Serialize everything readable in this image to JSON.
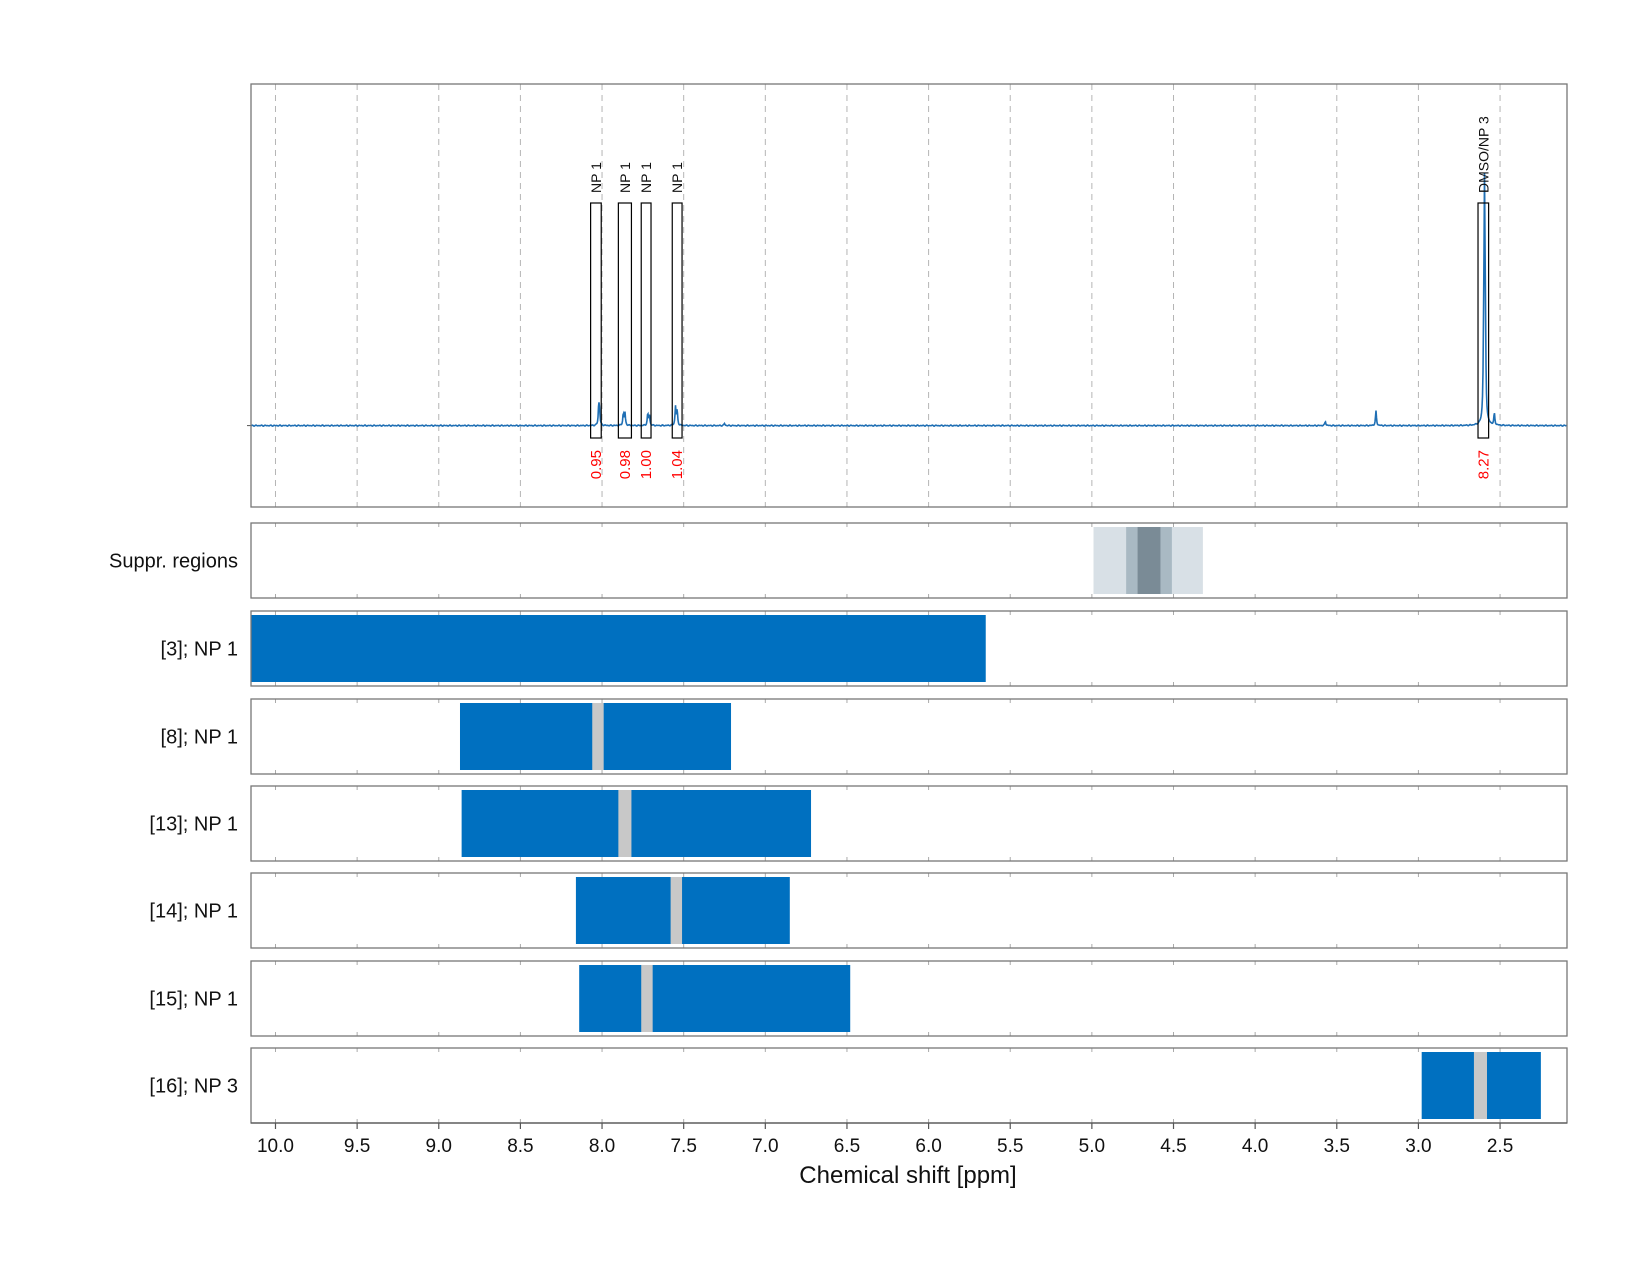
{
  "chart_data": {
    "type": "nmr-spectrum-with-region-bars",
    "xlabel": "Chemical shift [ppm]",
    "xlim": [
      10.15,
      2.09
    ],
    "x_reversed": true,
    "xticks": [
      "10.0",
      "9.5",
      "9.0",
      "8.5",
      "8.0",
      "7.5",
      "7.0",
      "6.5",
      "6.0",
      "5.5",
      "5.0",
      "4.5",
      "4.0",
      "3.5",
      "3.0",
      "2.5"
    ],
    "grid": true,
    "spectrum": {
      "color": "#1f6fb4",
      "baseline": 0,
      "ylim": [
        -0.56,
        2.35
      ],
      "peaks": [
        {
          "ppm": 8.02,
          "height": 0.14
        },
        {
          "ppm": 8.015,
          "height": 0.08
        },
        {
          "ppm": 7.87,
          "height": 0.08
        },
        {
          "ppm": 7.86,
          "height": 0.09
        },
        {
          "ppm": 7.72,
          "height": 0.08
        },
        {
          "ppm": 7.71,
          "height": 0.07
        },
        {
          "ppm": 7.55,
          "height": 0.13
        },
        {
          "ppm": 7.54,
          "height": 0.1
        },
        {
          "ppm": 7.25,
          "height": 0.015
        },
        {
          "ppm": 3.57,
          "height": 0.03
        },
        {
          "ppm": 3.26,
          "height": 0.1
        },
        {
          "ppm": 2.6,
          "height": 0.45
        },
        {
          "ppm": 2.595,
          "height": 1.45
        },
        {
          "ppm": 2.59,
          "height": 0.45
        },
        {
          "ppm": 2.535,
          "height": 0.08
        }
      ],
      "annotations": [
        {
          "label": "NP 1",
          "ppm_start": 8.07,
          "ppm_end": 8.005,
          "integral": "0.95"
        },
        {
          "label": "NP 1",
          "ppm_start": 7.9,
          "ppm_end": 7.82,
          "integral": "0.98"
        },
        {
          "label": "NP 1",
          "ppm_start": 7.76,
          "ppm_end": 7.7,
          "integral": "1.00"
        },
        {
          "label": "NP 1",
          "ppm_start": 7.57,
          "ppm_end": 7.51,
          "integral": "1.04"
        },
        {
          "label": "DMSO/NP 3",
          "ppm_start": 2.635,
          "ppm_end": 2.57,
          "integral": "8.27"
        }
      ]
    },
    "rows": [
      {
        "label": "Suppr. regions",
        "bars": [
          {
            "from": 4.99,
            "to": 4.32,
            "color": "#d8e0e6"
          },
          {
            "from": 4.79,
            "to": 4.51,
            "color": "#a9b9c3"
          },
          {
            "from": 4.72,
            "to": 4.58,
            "color": "#7a8b96"
          }
        ]
      },
      {
        "label": "[3]; NP 1",
        "bars": [
          {
            "from": 10.15,
            "to": 5.65,
            "color": "#0070c0"
          }
        ]
      },
      {
        "label": "[8]; NP 1",
        "bars": [
          {
            "from": 8.87,
            "to": 7.21,
            "color": "#0070c0"
          },
          {
            "from": 8.06,
            "to": 7.99,
            "color": "#c8c8c8"
          }
        ]
      },
      {
        "label": "[13]; NP 1",
        "bars": [
          {
            "from": 8.86,
            "to": 6.72,
            "color": "#0070c0"
          },
          {
            "from": 7.9,
            "to": 7.82,
            "color": "#c8c8c8"
          }
        ]
      },
      {
        "label": "[14]; NP 1",
        "bars": [
          {
            "from": 8.16,
            "to": 6.85,
            "color": "#0070c0"
          },
          {
            "from": 7.58,
            "to": 7.51,
            "color": "#c8c8c8"
          }
        ]
      },
      {
        "label": "[15]; NP 1",
        "bars": [
          {
            "from": 8.14,
            "to": 6.48,
            "color": "#0070c0"
          },
          {
            "from": 7.76,
            "to": 7.69,
            "color": "#c8c8c8"
          }
        ]
      },
      {
        "label": "[16]; NP 3",
        "bars": [
          {
            "from": 2.98,
            "to": 2.25,
            "color": "#0070c0"
          },
          {
            "from": 2.66,
            "to": 2.58,
            "color": "#c8c8c8"
          }
        ]
      }
    ]
  }
}
